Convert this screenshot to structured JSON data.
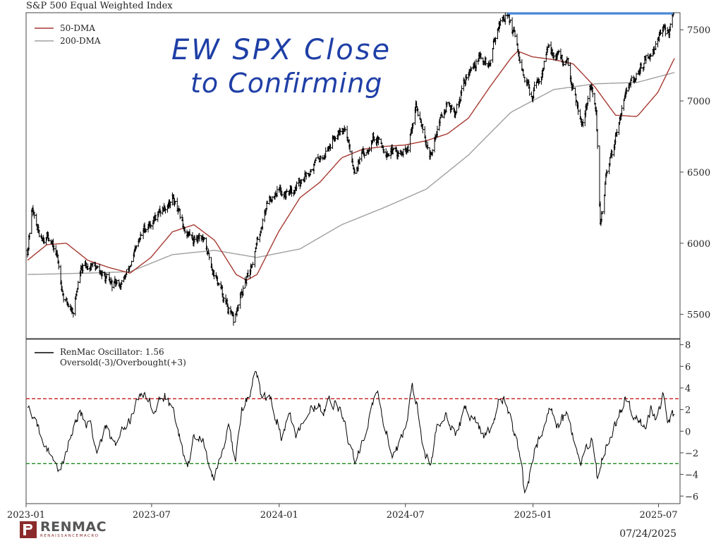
{
  "chart_data": [
    {
      "type": "line",
      "title": "S&P 500 Equal Weighted Index",
      "y_ticks": [
        5500,
        6000,
        6500,
        7000,
        7500
      ],
      "ylim": [
        5330,
        7620
      ],
      "series": [
        {
          "name": "50-DMA",
          "color": "#a63a32"
        },
        {
          "name": "200-DMA",
          "color": "#a0a0a0"
        }
      ],
      "price_anchors": [
        [
          "2023-01-03",
          5950
        ],
        [
          "2023-01-10",
          6250
        ],
        [
          "2023-01-20",
          6050
        ],
        [
          "2023-02-03",
          6050
        ],
        [
          "2023-02-15",
          5900
        ],
        [
          "2023-02-25",
          5600
        ],
        [
          "2023-03-10",
          5530
        ],
        [
          "2023-03-20",
          5800
        ],
        [
          "2023-04-05",
          5860
        ],
        [
          "2023-04-20",
          5780
        ],
        [
          "2023-05-05",
          5700
        ],
        [
          "2023-05-20",
          5720
        ],
        [
          "2023-06-05",
          5900
        ],
        [
          "2023-06-20",
          6100
        ],
        [
          "2023-07-10",
          6200
        ],
        [
          "2023-07-31",
          6320
        ],
        [
          "2023-08-15",
          6120
        ],
        [
          "2023-08-30",
          6030
        ],
        [
          "2023-09-10",
          6070
        ],
        [
          "2023-09-25",
          5850
        ],
        [
          "2023-10-10",
          5650
        ],
        [
          "2023-10-27",
          5440
        ],
        [
          "2023-11-08",
          5640
        ],
        [
          "2023-11-18",
          5780
        ],
        [
          "2023-11-30",
          6000
        ],
        [
          "2023-12-15",
          6300
        ],
        [
          "2023-12-29",
          6380
        ],
        [
          "2024-01-10",
          6350
        ],
        [
          "2024-01-25",
          6400
        ],
        [
          "2024-02-10",
          6500
        ],
        [
          "2024-02-29",
          6600
        ],
        [
          "2024-03-15",
          6700
        ],
        [
          "2024-03-28",
          6830
        ],
        [
          "2024-04-05",
          6800
        ],
        [
          "2024-04-18",
          6530
        ],
        [
          "2024-05-05",
          6650
        ],
        [
          "2024-05-15",
          6760
        ],
        [
          "2024-06-05",
          6650
        ],
        [
          "2024-06-25",
          6620
        ],
        [
          "2024-07-05",
          6650
        ],
        [
          "2024-07-16",
          6950
        ],
        [
          "2024-07-25",
          6850
        ],
        [
          "2024-08-05",
          6580
        ],
        [
          "2024-08-15",
          6800
        ],
        [
          "2024-08-30",
          7000
        ],
        [
          "2024-09-10",
          6900
        ],
        [
          "2024-09-25",
          7150
        ],
        [
          "2024-10-15",
          7300
        ],
        [
          "2024-10-31",
          7250
        ],
        [
          "2024-11-10",
          7520
        ],
        [
          "2024-11-25",
          7620
        ],
        [
          "2024-12-05",
          7450
        ],
        [
          "2024-12-20",
          7100
        ],
        [
          "2024-12-31",
          7050
        ],
        [
          "2025-01-10",
          7150
        ],
        [
          "2025-01-22",
          7350
        ],
        [
          "2025-02-05",
          7320
        ],
        [
          "2025-02-20",
          7250
        ],
        [
          "2025-03-05",
          7000
        ],
        [
          "2025-03-13",
          6850
        ],
        [
          "2025-03-25",
          7100
        ],
        [
          "2025-04-02",
          6900
        ],
        [
          "2025-04-08",
          6120
        ],
        [
          "2025-04-16",
          6450
        ],
        [
          "2025-04-28",
          6700
        ],
        [
          "2025-05-12",
          7050
        ],
        [
          "2025-05-28",
          7150
        ],
        [
          "2025-06-12",
          7300
        ],
        [
          "2025-06-25",
          7350
        ],
        [
          "2025-07-03",
          7500
        ],
        [
          "2025-07-15",
          7470
        ],
        [
          "2025-07-24",
          7610
        ]
      ],
      "dma50_anchors": [
        [
          "2023-01-03",
          5880
        ],
        [
          "2023-01-31",
          5990
        ],
        [
          "2023-02-28",
          6000
        ],
        [
          "2023-03-31",
          5880
        ],
        [
          "2023-04-30",
          5830
        ],
        [
          "2023-05-31",
          5790
        ],
        [
          "2023-06-30",
          5900
        ],
        [
          "2023-07-31",
          6080
        ],
        [
          "2023-08-31",
          6130
        ],
        [
          "2023-09-30",
          6020
        ],
        [
          "2023-10-31",
          5780
        ],
        [
          "2023-11-15",
          5740
        ],
        [
          "2023-11-30",
          5780
        ],
        [
          "2023-12-31",
          6080
        ],
        [
          "2024-01-31",
          6320
        ],
        [
          "2024-02-29",
          6430
        ],
        [
          "2024-03-31",
          6600
        ],
        [
          "2024-04-30",
          6660
        ],
        [
          "2024-05-31",
          6680
        ],
        [
          "2024-06-30",
          6690
        ],
        [
          "2024-07-31",
          6720
        ],
        [
          "2024-08-31",
          6770
        ],
        [
          "2024-09-30",
          6880
        ],
        [
          "2024-10-31",
          7100
        ],
        [
          "2024-11-30",
          7300
        ],
        [
          "2024-12-10",
          7350
        ],
        [
          "2024-12-31",
          7310
        ],
        [
          "2025-01-31",
          7290
        ],
        [
          "2025-02-28",
          7260
        ],
        [
          "2025-03-31",
          7100
        ],
        [
          "2025-04-30",
          6900
        ],
        [
          "2025-05-31",
          6890
        ],
        [
          "2025-06-30",
          7060
        ],
        [
          "2025-07-24",
          7300
        ]
      ],
      "dma200_anchors": [
        [
          "2023-01-03",
          5780
        ],
        [
          "2023-03-31",
          5790
        ],
        [
          "2023-05-31",
          5800
        ],
        [
          "2023-07-31",
          5920
        ],
        [
          "2023-09-30",
          5950
        ],
        [
          "2023-11-30",
          5900
        ],
        [
          "2024-01-31",
          5960
        ],
        [
          "2024-03-31",
          6130
        ],
        [
          "2024-05-31",
          6250
        ],
        [
          "2024-07-31",
          6380
        ],
        [
          "2024-09-30",
          6620
        ],
        [
          "2024-11-30",
          6920
        ],
        [
          "2025-01-31",
          7080
        ],
        [
          "2025-03-31",
          7120
        ],
        [
          "2025-05-31",
          7130
        ],
        [
          "2025-07-24",
          7200
        ]
      ],
      "resistance_line": {
        "start": "2024-11-25",
        "end": "2025-07-31",
        "value": 7615,
        "color": "#4a86d6"
      },
      "annotation_lines": [
        "EW SPX Close",
        "to Confirming"
      ]
    },
    {
      "type": "line",
      "y_ticks": [
        -6,
        -4,
        -2,
        0,
        2,
        4,
        6,
        8
      ],
      "ylim": [
        -6.7,
        8.5
      ],
      "overbought": 3,
      "oversold": -3,
      "series": [
        {
          "name": "RenMac Oscillator: 1.56",
          "color": "#000000"
        },
        {
          "name": "Oversold(-3)/Overbought(+3)"
        }
      ],
      "osc_anchors": [
        [
          "2023-01-03",
          2.0
        ],
        [
          "2023-01-15",
          1.0
        ],
        [
          "2023-01-25",
          -1.5
        ],
        [
          "2023-02-05",
          -2.0
        ],
        [
          "2023-02-15",
          -3.8
        ],
        [
          "2023-02-25",
          -2.5
        ],
        [
          "2023-03-10",
          0.5
        ],
        [
          "2023-03-20",
          1.8
        ],
        [
          "2023-04-05",
          0.2
        ],
        [
          "2023-04-15",
          -2.0
        ],
        [
          "2023-04-25",
          0.5
        ],
        [
          "2023-05-10",
          -1.5
        ],
        [
          "2023-05-25",
          0.5
        ],
        [
          "2023-06-10",
          2.5
        ],
        [
          "2023-06-20",
          3.2
        ],
        [
          "2023-07-05",
          2.0
        ],
        [
          "2023-07-20",
          3.3
        ],
        [
          "2023-08-05",
          1.0
        ],
        [
          "2023-08-20",
          -3.5
        ],
        [
          "2023-09-01",
          -0.5
        ],
        [
          "2023-09-15",
          -1.0
        ],
        [
          "2023-09-28",
          -4.3
        ],
        [
          "2023-10-10",
          -2.0
        ],
        [
          "2023-10-20",
          1.0
        ],
        [
          "2023-10-30",
          -3.0
        ],
        [
          "2023-11-08",
          2.0
        ],
        [
          "2023-11-20",
          3.5
        ],
        [
          "2023-11-28",
          5.8
        ],
        [
          "2023-12-05",
          3.3
        ],
        [
          "2023-12-20",
          3.0
        ],
        [
          "2024-01-05",
          -0.5
        ],
        [
          "2024-01-15",
          1.5
        ],
        [
          "2024-01-25",
          -0.5
        ],
        [
          "2024-02-10",
          2.0
        ],
        [
          "2024-02-25",
          2.5
        ],
        [
          "2024-03-05",
          1.5
        ],
        [
          "2024-03-15",
          3.0
        ],
        [
          "2024-03-28",
          2.0
        ],
        [
          "2024-04-05",
          0.5
        ],
        [
          "2024-04-15",
          -2.0
        ],
        [
          "2024-04-20",
          -3.3
        ],
        [
          "2024-05-01",
          -0.5
        ],
        [
          "2024-05-15",
          2.5
        ],
        [
          "2024-05-22",
          3.1
        ],
        [
          "2024-06-05",
          -0.5
        ],
        [
          "2024-06-15",
          -2.5
        ],
        [
          "2024-06-25",
          -0.5
        ],
        [
          "2024-07-03",
          1.0
        ],
        [
          "2024-07-10",
          4.5
        ],
        [
          "2024-07-16",
          3.0
        ],
        [
          "2024-07-25",
          -1.0
        ],
        [
          "2024-08-05",
          -3.2
        ],
        [
          "2024-08-15",
          0.0
        ],
        [
          "2024-08-30",
          1.5
        ],
        [
          "2024-09-10",
          -0.5
        ],
        [
          "2024-09-25",
          2.0
        ],
        [
          "2024-10-10",
          1.0
        ],
        [
          "2024-10-25",
          -0.5
        ],
        [
          "2024-11-05",
          1.0
        ],
        [
          "2024-11-12",
          3.0
        ],
        [
          "2024-11-25",
          2.5
        ],
        [
          "2024-12-05",
          -0.5
        ],
        [
          "2024-12-15",
          -2.5
        ],
        [
          "2024-12-20",
          -6.0
        ],
        [
          "2025-01-05",
          -1.5
        ],
        [
          "2025-01-15",
          0.0
        ],
        [
          "2025-01-25",
          2.3
        ],
        [
          "2025-02-05",
          0.5
        ],
        [
          "2025-02-20",
          1.5
        ],
        [
          "2025-03-01",
          -1.0
        ],
        [
          "2025-03-10",
          -3.3
        ],
        [
          "2025-03-20",
          -1.5
        ],
        [
          "2025-03-28",
          -1.0
        ],
        [
          "2025-04-04",
          -4.5
        ],
        [
          "2025-04-12",
          -2.0
        ],
        [
          "2025-04-20",
          -1.0
        ],
        [
          "2025-04-28",
          0.5
        ],
        [
          "2025-05-05",
          1.5
        ],
        [
          "2025-05-15",
          3.2
        ],
        [
          "2025-05-28",
          1.0
        ],
        [
          "2025-06-10",
          0.5
        ],
        [
          "2025-06-20",
          2.0
        ],
        [
          "2025-06-28",
          0.8
        ],
        [
          "2025-07-07",
          3.3
        ],
        [
          "2025-07-15",
          0.5
        ],
        [
          "2025-07-20",
          2.0
        ],
        [
          "2025-07-24",
          1.56
        ]
      ]
    }
  ],
  "x_axis": {
    "start": "2023-01-01",
    "end": "2025-08-01",
    "ticks": [
      {
        "date": "2023-01-01",
        "label": "2023-01"
      },
      {
        "date": "2023-07-01",
        "label": "2023-07"
      },
      {
        "date": "2024-01-01",
        "label": "2024-01"
      },
      {
        "date": "2024-07-01",
        "label": "2024-07"
      },
      {
        "date": "2025-01-01",
        "label": "2025-01"
      },
      {
        "date": "2025-07-01",
        "label": "2025-07"
      }
    ]
  },
  "footer": {
    "date": "07/24/2025",
    "brand": "RENMAC",
    "brand_sub": "RENAISSANCEMACRO"
  }
}
